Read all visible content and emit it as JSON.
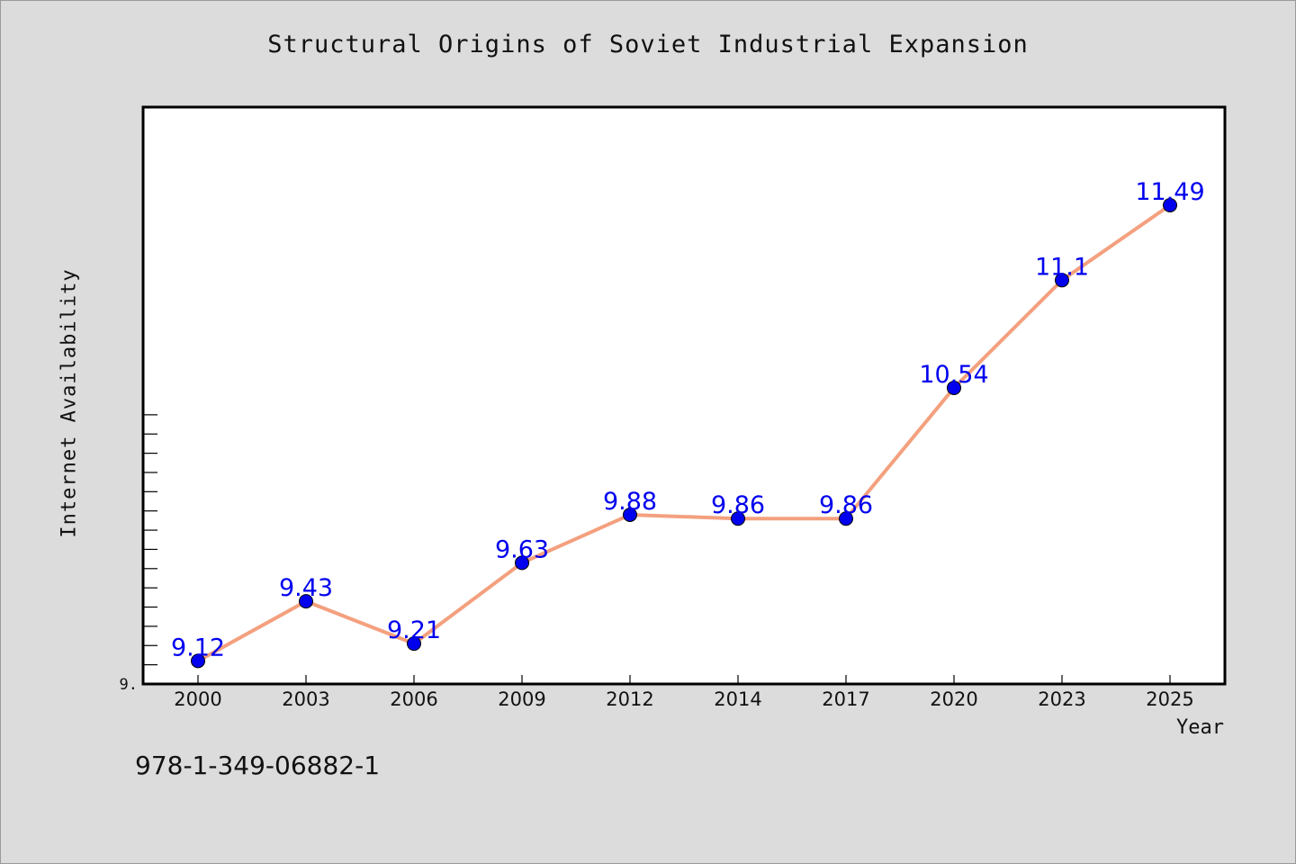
{
  "title": "Structural Origins of Soviet Industrial Expansion",
  "isbn_text": "978-1-349-06882-1",
  "chart_data": {
    "type": "line",
    "title": "Structural Origins of Soviet Industrial Expansion",
    "xlabel": "Year",
    "ylabel": "Internet Availability",
    "categories": [
      "2000",
      "2003",
      "2006",
      "2009",
      "2012",
      "2014",
      "2017",
      "2020",
      "2023",
      "2025"
    ],
    "series": [
      {
        "values": [
          9.12,
          9.43,
          9.21,
          9.63,
          9.88,
          9.86,
          9.86,
          10.54,
          11.1,
          11.49
        ],
        "data_labels": [
          "9.12",
          "9.43",
          "9.21",
          "9.63",
          "9.88",
          "9.86",
          "9.86",
          "10.54",
          "11.1",
          "11.49"
        ]
      }
    ],
    "y_tick_labels": [
      "9."
    ],
    "ylim": [
      9.0,
      12.0
    ],
    "grid": false,
    "legend": "none",
    "colors": {
      "line": "#f4a07e",
      "marker": "#0000ee",
      "data_label": "#0000ee",
      "background": "#dcdcdc",
      "plot_background": "#ffffff"
    }
  }
}
